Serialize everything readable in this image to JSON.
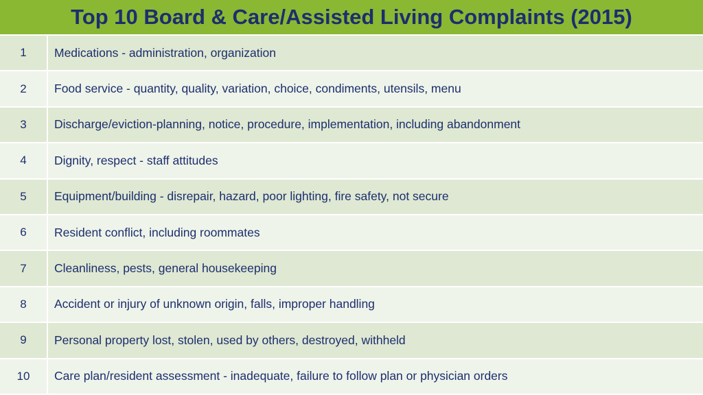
{
  "header": {
    "title": "Top 10 Board & Care/Assisted Living Complaints (2015)"
  },
  "colors": {
    "title_bar": "#8ab833",
    "title_text": "#1c2e6e",
    "row_odd": "#dfe8d2",
    "row_even": "#eff4ea"
  },
  "complaints": [
    {
      "rank": "1",
      "text": "Medications - administration, organization"
    },
    {
      "rank": "2",
      "text": "Food service - quantity, quality, variation, choice, condiments, utensils, menu"
    },
    {
      "rank": "3",
      "text": "Discharge/eviction-planning, notice, procedure, implementation, including abandonment"
    },
    {
      "rank": "4",
      "text": "Dignity, respect - staff attitudes"
    },
    {
      "rank": "5",
      "text": "Equipment/building - disrepair, hazard, poor lighting, fire safety, not secure"
    },
    {
      "rank": "6",
      "text": "Resident conflict, including roommates"
    },
    {
      "rank": "7",
      "text": "Cleanliness, pests, general housekeeping"
    },
    {
      "rank": "8",
      "text": "Accident or injury of unknown origin, falls, improper handling"
    },
    {
      "rank": "9",
      "text": "Personal property lost, stolen, used by others, destroyed, withheld"
    },
    {
      "rank": "10",
      "text": "Care plan/resident assessment - inadequate, failure to follow plan or physician orders"
    }
  ]
}
